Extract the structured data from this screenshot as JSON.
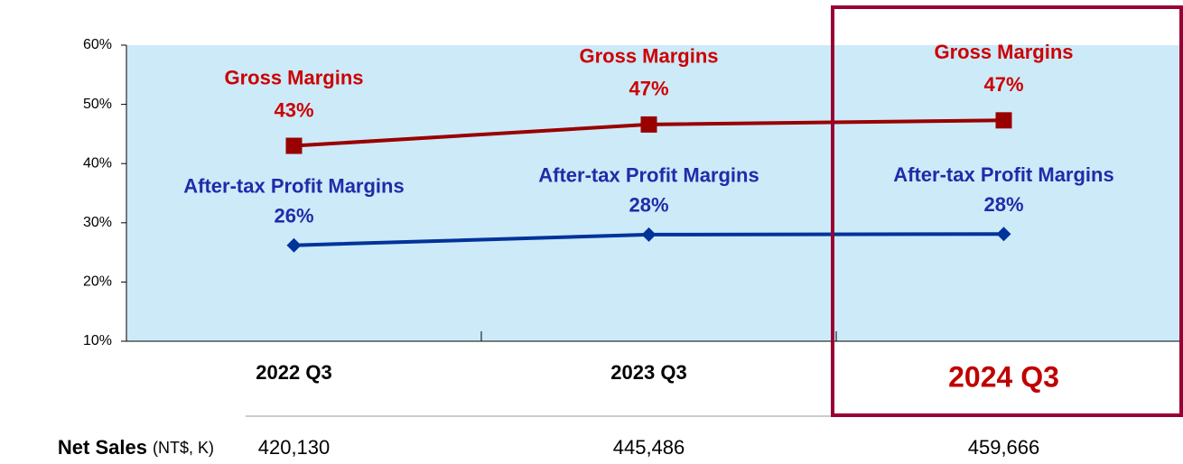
{
  "chart_data": {
    "type": "line",
    "categories": [
      "2022 Q3",
      "2023 Q3",
      "2024 Q3"
    ],
    "series": [
      {
        "name": "Gross Margins",
        "color": "#990000",
        "marker": "square",
        "values": [
          43,
          46.6,
          47.3
        ],
        "value_labels": [
          "43%",
          "47%",
          "47%"
        ]
      },
      {
        "name": "After-tax Profit Margins",
        "color": "#003399",
        "marker": "diamond",
        "values": [
          26.2,
          28,
          28.1
        ],
        "value_labels": [
          "26%",
          "28%",
          "28%"
        ]
      }
    ],
    "ylim": [
      10,
      60
    ],
    "yticks": [
      {
        "value": 10,
        "label": "10%"
      },
      {
        "value": 20,
        "label": "20%"
      },
      {
        "value": 30,
        "label": "30%"
      },
      {
        "value": 40,
        "label": "40%"
      },
      {
        "value": 50,
        "label": "50%"
      },
      {
        "value": 60,
        "label": "60%"
      }
    ],
    "background": "#cdeaf9"
  },
  "net_sales": {
    "label": "Net Sales",
    "unit": "(NT$, K)",
    "values": [
      420130,
      445486,
      459666
    ],
    "value_labels": [
      "420,130",
      "445,486",
      "459,666"
    ]
  }
}
